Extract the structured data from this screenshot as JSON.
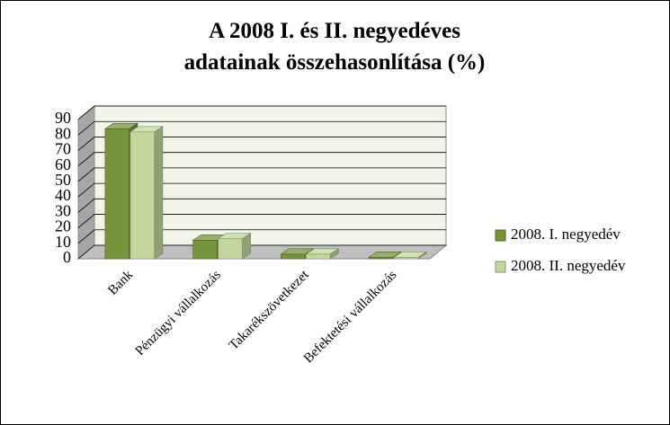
{
  "chart_data": {
    "type": "bar3d",
    "title": "A 2008 I. és II. negyedéves adatainak összehasonlítása (%)",
    "categories": [
      "Bank",
      "Pénzügyi vállalkozás",
      "Takarékszövetkezet",
      "Befektetési vállalkozás"
    ],
    "series": [
      {
        "name": "2008. I. negyedév",
        "color": "#77933c",
        "values": [
          84,
          12,
          3,
          1
        ]
      },
      {
        "name": "2008. II. negyedév",
        "color": "#c3d69b",
        "values": [
          82,
          13,
          3,
          1
        ]
      }
    ],
    "ylim": [
      0,
      90
    ],
    "yticks": [
      0,
      10,
      20,
      30,
      40,
      50,
      60,
      70,
      80,
      90
    ],
    "grid": true,
    "legend": "right"
  }
}
